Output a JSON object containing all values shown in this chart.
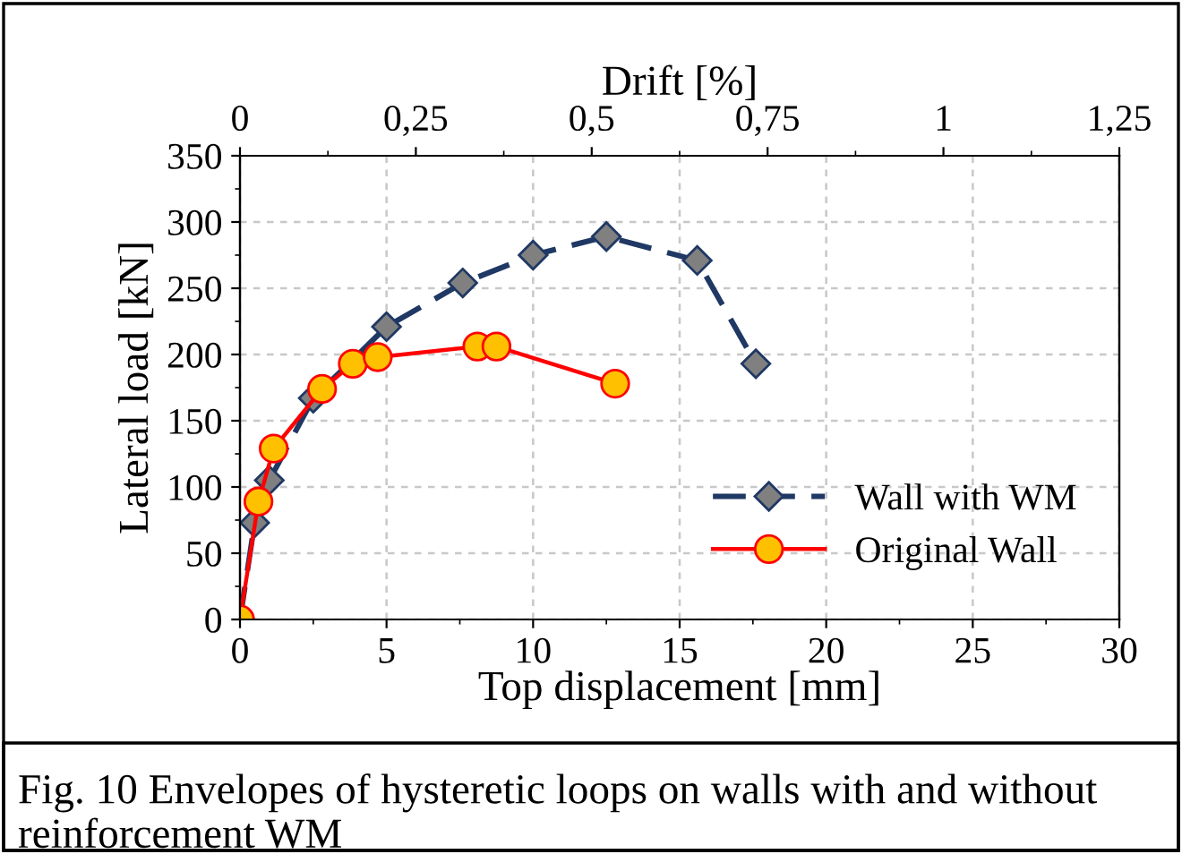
{
  "chart_data": {
    "type": "line",
    "xlabel": "Top displacement [mm]",
    "ylabel": "Lateral load [kN]",
    "x2label": "Drift [%]",
    "xlim": [
      0,
      30
    ],
    "xticks": [
      0,
      5,
      10,
      15,
      20,
      25,
      30
    ],
    "ylim": [
      0,
      350
    ],
    "yticks": [
      0,
      50,
      100,
      150,
      200,
      250,
      300,
      350
    ],
    "x2lim": [
      0,
      1.25
    ],
    "x2ticks": [
      0,
      {
        "value": 0.25,
        "label": "0,25"
      },
      {
        "value": 0.5,
        "label": "0,5"
      },
      {
        "value": 0.75,
        "label": "0,75"
      },
      1,
      {
        "value": 1.25,
        "label": "1,25"
      }
    ],
    "grid": true,
    "legend": "right",
    "series": [
      {
        "name": "Wall with WM",
        "color": "#1f3864",
        "marker": "diamond",
        "line_style": "dashed",
        "x": [
          0,
          0.5,
          1.0,
          2.5,
          5.0,
          7.6,
          10.0,
          12.5,
          15.6,
          17.6
        ],
        "values": [
          0,
          73,
          105,
          167,
          221,
          254,
          275,
          289,
          271,
          193
        ]
      },
      {
        "name": "Original Wall",
        "color": "#ff0000",
        "marker": "circle",
        "line_style": "solid",
        "x": [
          0,
          0.63,
          1.15,
          2.8,
          3.85,
          4.7,
          8.1,
          8.75,
          12.8
        ],
        "values": [
          0,
          89,
          129,
          174,
          193,
          198,
          206,
          206,
          178
        ]
      }
    ],
    "annotations": [
      "Fig. 10 Envelopes of hysteretic loops on walls with and without reinforcement WM"
    ]
  }
}
